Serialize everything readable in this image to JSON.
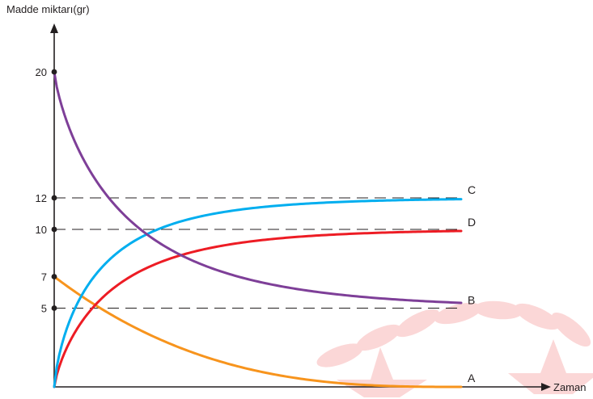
{
  "chart_data": {
    "type": "line",
    "ylabel": "Madde miktarı(gr)",
    "xlabel": "Zaman",
    "ylim": [
      0,
      24
    ],
    "yticks": [
      {
        "value": 20,
        "label": "20"
      },
      {
        "value": 12,
        "label": "12"
      },
      {
        "value": 10,
        "label": "10"
      },
      {
        "value": 7,
        "label": "7"
      },
      {
        "value": 5,
        "label": "5"
      }
    ],
    "reference_lines": [
      12,
      10,
      5
    ],
    "series": [
      {
        "name": "A",
        "color": "#f7941d",
        "start": 7,
        "end": 0
      },
      {
        "name": "B",
        "color": "#7e3f98",
        "start": 20,
        "end": 5
      },
      {
        "name": "C",
        "color": "#00aeef",
        "start": 0,
        "end": 12
      },
      {
        "name": "D",
        "color": "#ed1c24",
        "start": 0,
        "end": 10
      }
    ],
    "grid": false
  }
}
